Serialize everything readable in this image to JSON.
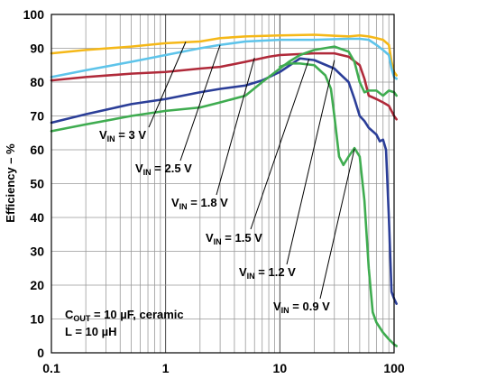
{
  "chart_data": {
    "type": "line",
    "ylabel": "Efficiency – %",
    "xlabel": "",
    "x_scale": "log",
    "xlim": [
      0.1,
      100
    ],
    "ylim": [
      0,
      100
    ],
    "x_ticks": [
      "0.1",
      "1",
      "10",
      "100"
    ],
    "y_ticks": [
      "0",
      "10",
      "20",
      "30",
      "40",
      "50",
      "60",
      "70",
      "80",
      "90",
      "100"
    ],
    "grid": true,
    "conditions": {
      "cout": {
        "prefix": "C",
        "sub": "OUT",
        "rest": " = 10 µF, ceramic"
      },
      "inductor": "L = 10 µH"
    },
    "series": [
      {
        "name": "VIN = 3 V",
        "color": "#f5b818",
        "label": {
          "main": "V",
          "sub": "IN",
          "rest": " = 3 V"
        },
        "points": [
          [
            0.1,
            88.5
          ],
          [
            0.2,
            89.5
          ],
          [
            0.5,
            90.5
          ],
          [
            1,
            91.5
          ],
          [
            2,
            92
          ],
          [
            3,
            93
          ],
          [
            5,
            93.5
          ],
          [
            10,
            93.8
          ],
          [
            20,
            94
          ],
          [
            40,
            93.5
          ],
          [
            50,
            93.8
          ],
          [
            60,
            93.5
          ],
          [
            70,
            93
          ],
          [
            80,
            92.5
          ],
          [
            90,
            91
          ],
          [
            95,
            86
          ],
          [
            100,
            83
          ],
          [
            105,
            82
          ]
        ]
      },
      {
        "name": "VIN = 2.5 V",
        "color": "#5ec4ea",
        "label": {
          "main": "V",
          "sub": "IN",
          "rest": " = 2.5 V"
        },
        "points": [
          [
            0.1,
            81.5
          ],
          [
            0.2,
            83.5
          ],
          [
            0.5,
            86
          ],
          [
            1,
            88
          ],
          [
            2,
            90
          ],
          [
            3,
            91
          ],
          [
            5,
            92
          ],
          [
            10,
            92.5
          ],
          [
            20,
            92.5
          ],
          [
            40,
            92.8
          ],
          [
            50,
            92.8
          ],
          [
            60,
            92.5
          ],
          [
            70,
            91
          ],
          [
            80,
            89.5
          ],
          [
            90,
            88
          ],
          [
            95,
            84
          ],
          [
            100,
            81.5
          ],
          [
            105,
            81
          ]
        ]
      },
      {
        "name": "VIN = 1.8 V",
        "color": "#b02a3a",
        "label": {
          "main": "V",
          "sub": "IN",
          "rest": " = 1.8 V"
        },
        "points": [
          [
            0.1,
            80.5
          ],
          [
            0.2,
            81.5
          ],
          [
            0.5,
            82.5
          ],
          [
            1,
            83
          ],
          [
            2,
            84
          ],
          [
            3,
            84.5
          ],
          [
            5,
            86
          ],
          [
            8,
            87.5
          ],
          [
            10,
            88
          ],
          [
            20,
            88.5
          ],
          [
            30,
            88.5
          ],
          [
            40,
            87.5
          ],
          [
            50,
            85
          ],
          [
            55,
            81
          ],
          [
            60,
            76
          ],
          [
            70,
            75
          ],
          [
            80,
            74
          ],
          [
            90,
            73
          ],
          [
            100,
            70
          ],
          [
            105,
            69
          ]
        ]
      },
      {
        "name": "VIN = 1.5 V",
        "color": "#2b3e98",
        "label": {
          "main": "V",
          "sub": "IN",
          "rest": " = 1.5 V"
        },
        "points": [
          [
            0.1,
            68
          ],
          [
            0.2,
            70.5
          ],
          [
            0.5,
            73.5
          ],
          [
            1,
            75
          ],
          [
            2,
            77
          ],
          [
            3,
            78
          ],
          [
            5,
            79
          ],
          [
            7,
            80.5
          ],
          [
            10,
            83
          ],
          [
            15,
            87
          ],
          [
            20,
            86.5
          ],
          [
            30,
            84
          ],
          [
            40,
            80
          ],
          [
            45,
            75
          ],
          [
            50,
            70
          ],
          [
            55,
            68.5
          ],
          [
            60,
            66.5
          ],
          [
            70,
            64.5
          ],
          [
            75,
            62.5
          ],
          [
            80,
            63
          ],
          [
            85,
            60
          ],
          [
            90,
            40
          ],
          [
            95,
            18
          ],
          [
            100,
            16
          ],
          [
            105,
            14.5
          ]
        ]
      },
      {
        "name": "VIN = 1.2 V",
        "color": "#3fac50",
        "label": {
          "main": "V",
          "sub": "IN",
          "rest": " = 1.2 V"
        },
        "points": [
          [
            0.1,
            65.5
          ],
          [
            0.2,
            67.5
          ],
          [
            0.5,
            70
          ],
          [
            1,
            71.5
          ],
          [
            2,
            72.5
          ],
          [
            3,
            74
          ],
          [
            5,
            76
          ],
          [
            7,
            80
          ],
          [
            10,
            84
          ],
          [
            12,
            86
          ],
          [
            15,
            88
          ],
          [
            20,
            89.5
          ],
          [
            30,
            90.5
          ],
          [
            40,
            89
          ],
          [
            45,
            86
          ],
          [
            50,
            80
          ],
          [
            55,
            77
          ],
          [
            60,
            77.5
          ],
          [
            70,
            77.5
          ],
          [
            80,
            76
          ],
          [
            90,
            77.5
          ],
          [
            100,
            77
          ],
          [
            105,
            76
          ]
        ]
      },
      {
        "name": "VIN = 0.9 V",
        "color": "#3fac50",
        "label": {
          "main": "V",
          "sub": "IN",
          "rest": " = 0.9 V"
        },
        "points": [
          [
            10,
            84.5
          ],
          [
            12,
            85.5
          ],
          [
            15,
            85.5
          ],
          [
            20,
            85
          ],
          [
            25,
            82
          ],
          [
            28,
            78
          ],
          [
            30,
            70
          ],
          [
            33,
            58
          ],
          [
            36,
            55.5
          ],
          [
            40,
            58
          ],
          [
            45,
            60.5
          ],
          [
            50,
            58
          ],
          [
            55,
            45
          ],
          [
            60,
            25
          ],
          [
            65,
            12
          ],
          [
            70,
            9
          ],
          [
            80,
            6
          ],
          [
            90,
            4
          ],
          [
            100,
            2.5
          ],
          [
            105,
            2
          ]
        ]
      }
    ]
  }
}
